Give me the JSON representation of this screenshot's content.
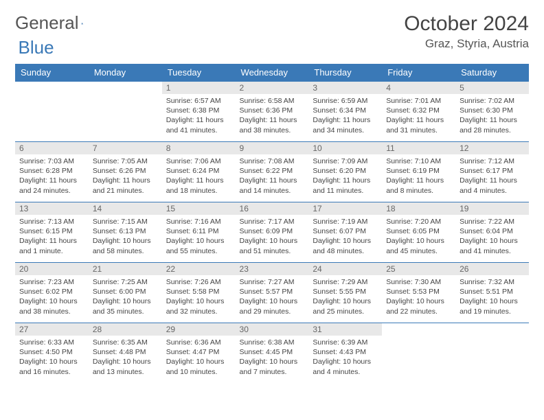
{
  "logo": {
    "text1": "General",
    "text2": "Blue"
  },
  "title": "October 2024",
  "location": "Graz, Styria, Austria",
  "colors": {
    "header_bg": "#3a79b7",
    "header_text": "#ffffff",
    "daynum_bg": "#e8e8e8",
    "border": "#3a79b7",
    "page_bg": "#ffffff"
  },
  "day_headers": [
    "Sunday",
    "Monday",
    "Tuesday",
    "Wednesday",
    "Thursday",
    "Friday",
    "Saturday"
  ],
  "weeks": [
    [
      {
        "n": "",
        "sr": "",
        "ss": "",
        "dl": ""
      },
      {
        "n": "",
        "sr": "",
        "ss": "",
        "dl": ""
      },
      {
        "n": "1",
        "sr": "Sunrise: 6:57 AM",
        "ss": "Sunset: 6:38 PM",
        "dl": "Daylight: 11 hours and 41 minutes."
      },
      {
        "n": "2",
        "sr": "Sunrise: 6:58 AM",
        "ss": "Sunset: 6:36 PM",
        "dl": "Daylight: 11 hours and 38 minutes."
      },
      {
        "n": "3",
        "sr": "Sunrise: 6:59 AM",
        "ss": "Sunset: 6:34 PM",
        "dl": "Daylight: 11 hours and 34 minutes."
      },
      {
        "n": "4",
        "sr": "Sunrise: 7:01 AM",
        "ss": "Sunset: 6:32 PM",
        "dl": "Daylight: 11 hours and 31 minutes."
      },
      {
        "n": "5",
        "sr": "Sunrise: 7:02 AM",
        "ss": "Sunset: 6:30 PM",
        "dl": "Daylight: 11 hours and 28 minutes."
      }
    ],
    [
      {
        "n": "6",
        "sr": "Sunrise: 7:03 AM",
        "ss": "Sunset: 6:28 PM",
        "dl": "Daylight: 11 hours and 24 minutes."
      },
      {
        "n": "7",
        "sr": "Sunrise: 7:05 AM",
        "ss": "Sunset: 6:26 PM",
        "dl": "Daylight: 11 hours and 21 minutes."
      },
      {
        "n": "8",
        "sr": "Sunrise: 7:06 AM",
        "ss": "Sunset: 6:24 PM",
        "dl": "Daylight: 11 hours and 18 minutes."
      },
      {
        "n": "9",
        "sr": "Sunrise: 7:08 AM",
        "ss": "Sunset: 6:22 PM",
        "dl": "Daylight: 11 hours and 14 minutes."
      },
      {
        "n": "10",
        "sr": "Sunrise: 7:09 AM",
        "ss": "Sunset: 6:20 PM",
        "dl": "Daylight: 11 hours and 11 minutes."
      },
      {
        "n": "11",
        "sr": "Sunrise: 7:10 AM",
        "ss": "Sunset: 6:19 PM",
        "dl": "Daylight: 11 hours and 8 minutes."
      },
      {
        "n": "12",
        "sr": "Sunrise: 7:12 AM",
        "ss": "Sunset: 6:17 PM",
        "dl": "Daylight: 11 hours and 4 minutes."
      }
    ],
    [
      {
        "n": "13",
        "sr": "Sunrise: 7:13 AM",
        "ss": "Sunset: 6:15 PM",
        "dl": "Daylight: 11 hours and 1 minute."
      },
      {
        "n": "14",
        "sr": "Sunrise: 7:15 AM",
        "ss": "Sunset: 6:13 PM",
        "dl": "Daylight: 10 hours and 58 minutes."
      },
      {
        "n": "15",
        "sr": "Sunrise: 7:16 AM",
        "ss": "Sunset: 6:11 PM",
        "dl": "Daylight: 10 hours and 55 minutes."
      },
      {
        "n": "16",
        "sr": "Sunrise: 7:17 AM",
        "ss": "Sunset: 6:09 PM",
        "dl": "Daylight: 10 hours and 51 minutes."
      },
      {
        "n": "17",
        "sr": "Sunrise: 7:19 AM",
        "ss": "Sunset: 6:07 PM",
        "dl": "Daylight: 10 hours and 48 minutes."
      },
      {
        "n": "18",
        "sr": "Sunrise: 7:20 AM",
        "ss": "Sunset: 6:05 PM",
        "dl": "Daylight: 10 hours and 45 minutes."
      },
      {
        "n": "19",
        "sr": "Sunrise: 7:22 AM",
        "ss": "Sunset: 6:04 PM",
        "dl": "Daylight: 10 hours and 41 minutes."
      }
    ],
    [
      {
        "n": "20",
        "sr": "Sunrise: 7:23 AM",
        "ss": "Sunset: 6:02 PM",
        "dl": "Daylight: 10 hours and 38 minutes."
      },
      {
        "n": "21",
        "sr": "Sunrise: 7:25 AM",
        "ss": "Sunset: 6:00 PM",
        "dl": "Daylight: 10 hours and 35 minutes."
      },
      {
        "n": "22",
        "sr": "Sunrise: 7:26 AM",
        "ss": "Sunset: 5:58 PM",
        "dl": "Daylight: 10 hours and 32 minutes."
      },
      {
        "n": "23",
        "sr": "Sunrise: 7:27 AM",
        "ss": "Sunset: 5:57 PM",
        "dl": "Daylight: 10 hours and 29 minutes."
      },
      {
        "n": "24",
        "sr": "Sunrise: 7:29 AM",
        "ss": "Sunset: 5:55 PM",
        "dl": "Daylight: 10 hours and 25 minutes."
      },
      {
        "n": "25",
        "sr": "Sunrise: 7:30 AM",
        "ss": "Sunset: 5:53 PM",
        "dl": "Daylight: 10 hours and 22 minutes."
      },
      {
        "n": "26",
        "sr": "Sunrise: 7:32 AM",
        "ss": "Sunset: 5:51 PM",
        "dl": "Daylight: 10 hours and 19 minutes."
      }
    ],
    [
      {
        "n": "27",
        "sr": "Sunrise: 6:33 AM",
        "ss": "Sunset: 4:50 PM",
        "dl": "Daylight: 10 hours and 16 minutes."
      },
      {
        "n": "28",
        "sr": "Sunrise: 6:35 AM",
        "ss": "Sunset: 4:48 PM",
        "dl": "Daylight: 10 hours and 13 minutes."
      },
      {
        "n": "29",
        "sr": "Sunrise: 6:36 AM",
        "ss": "Sunset: 4:47 PM",
        "dl": "Daylight: 10 hours and 10 minutes."
      },
      {
        "n": "30",
        "sr": "Sunrise: 6:38 AM",
        "ss": "Sunset: 4:45 PM",
        "dl": "Daylight: 10 hours and 7 minutes."
      },
      {
        "n": "31",
        "sr": "Sunrise: 6:39 AM",
        "ss": "Sunset: 4:43 PM",
        "dl": "Daylight: 10 hours and 4 minutes."
      },
      {
        "n": "",
        "sr": "",
        "ss": "",
        "dl": ""
      },
      {
        "n": "",
        "sr": "",
        "ss": "",
        "dl": ""
      }
    ]
  ]
}
